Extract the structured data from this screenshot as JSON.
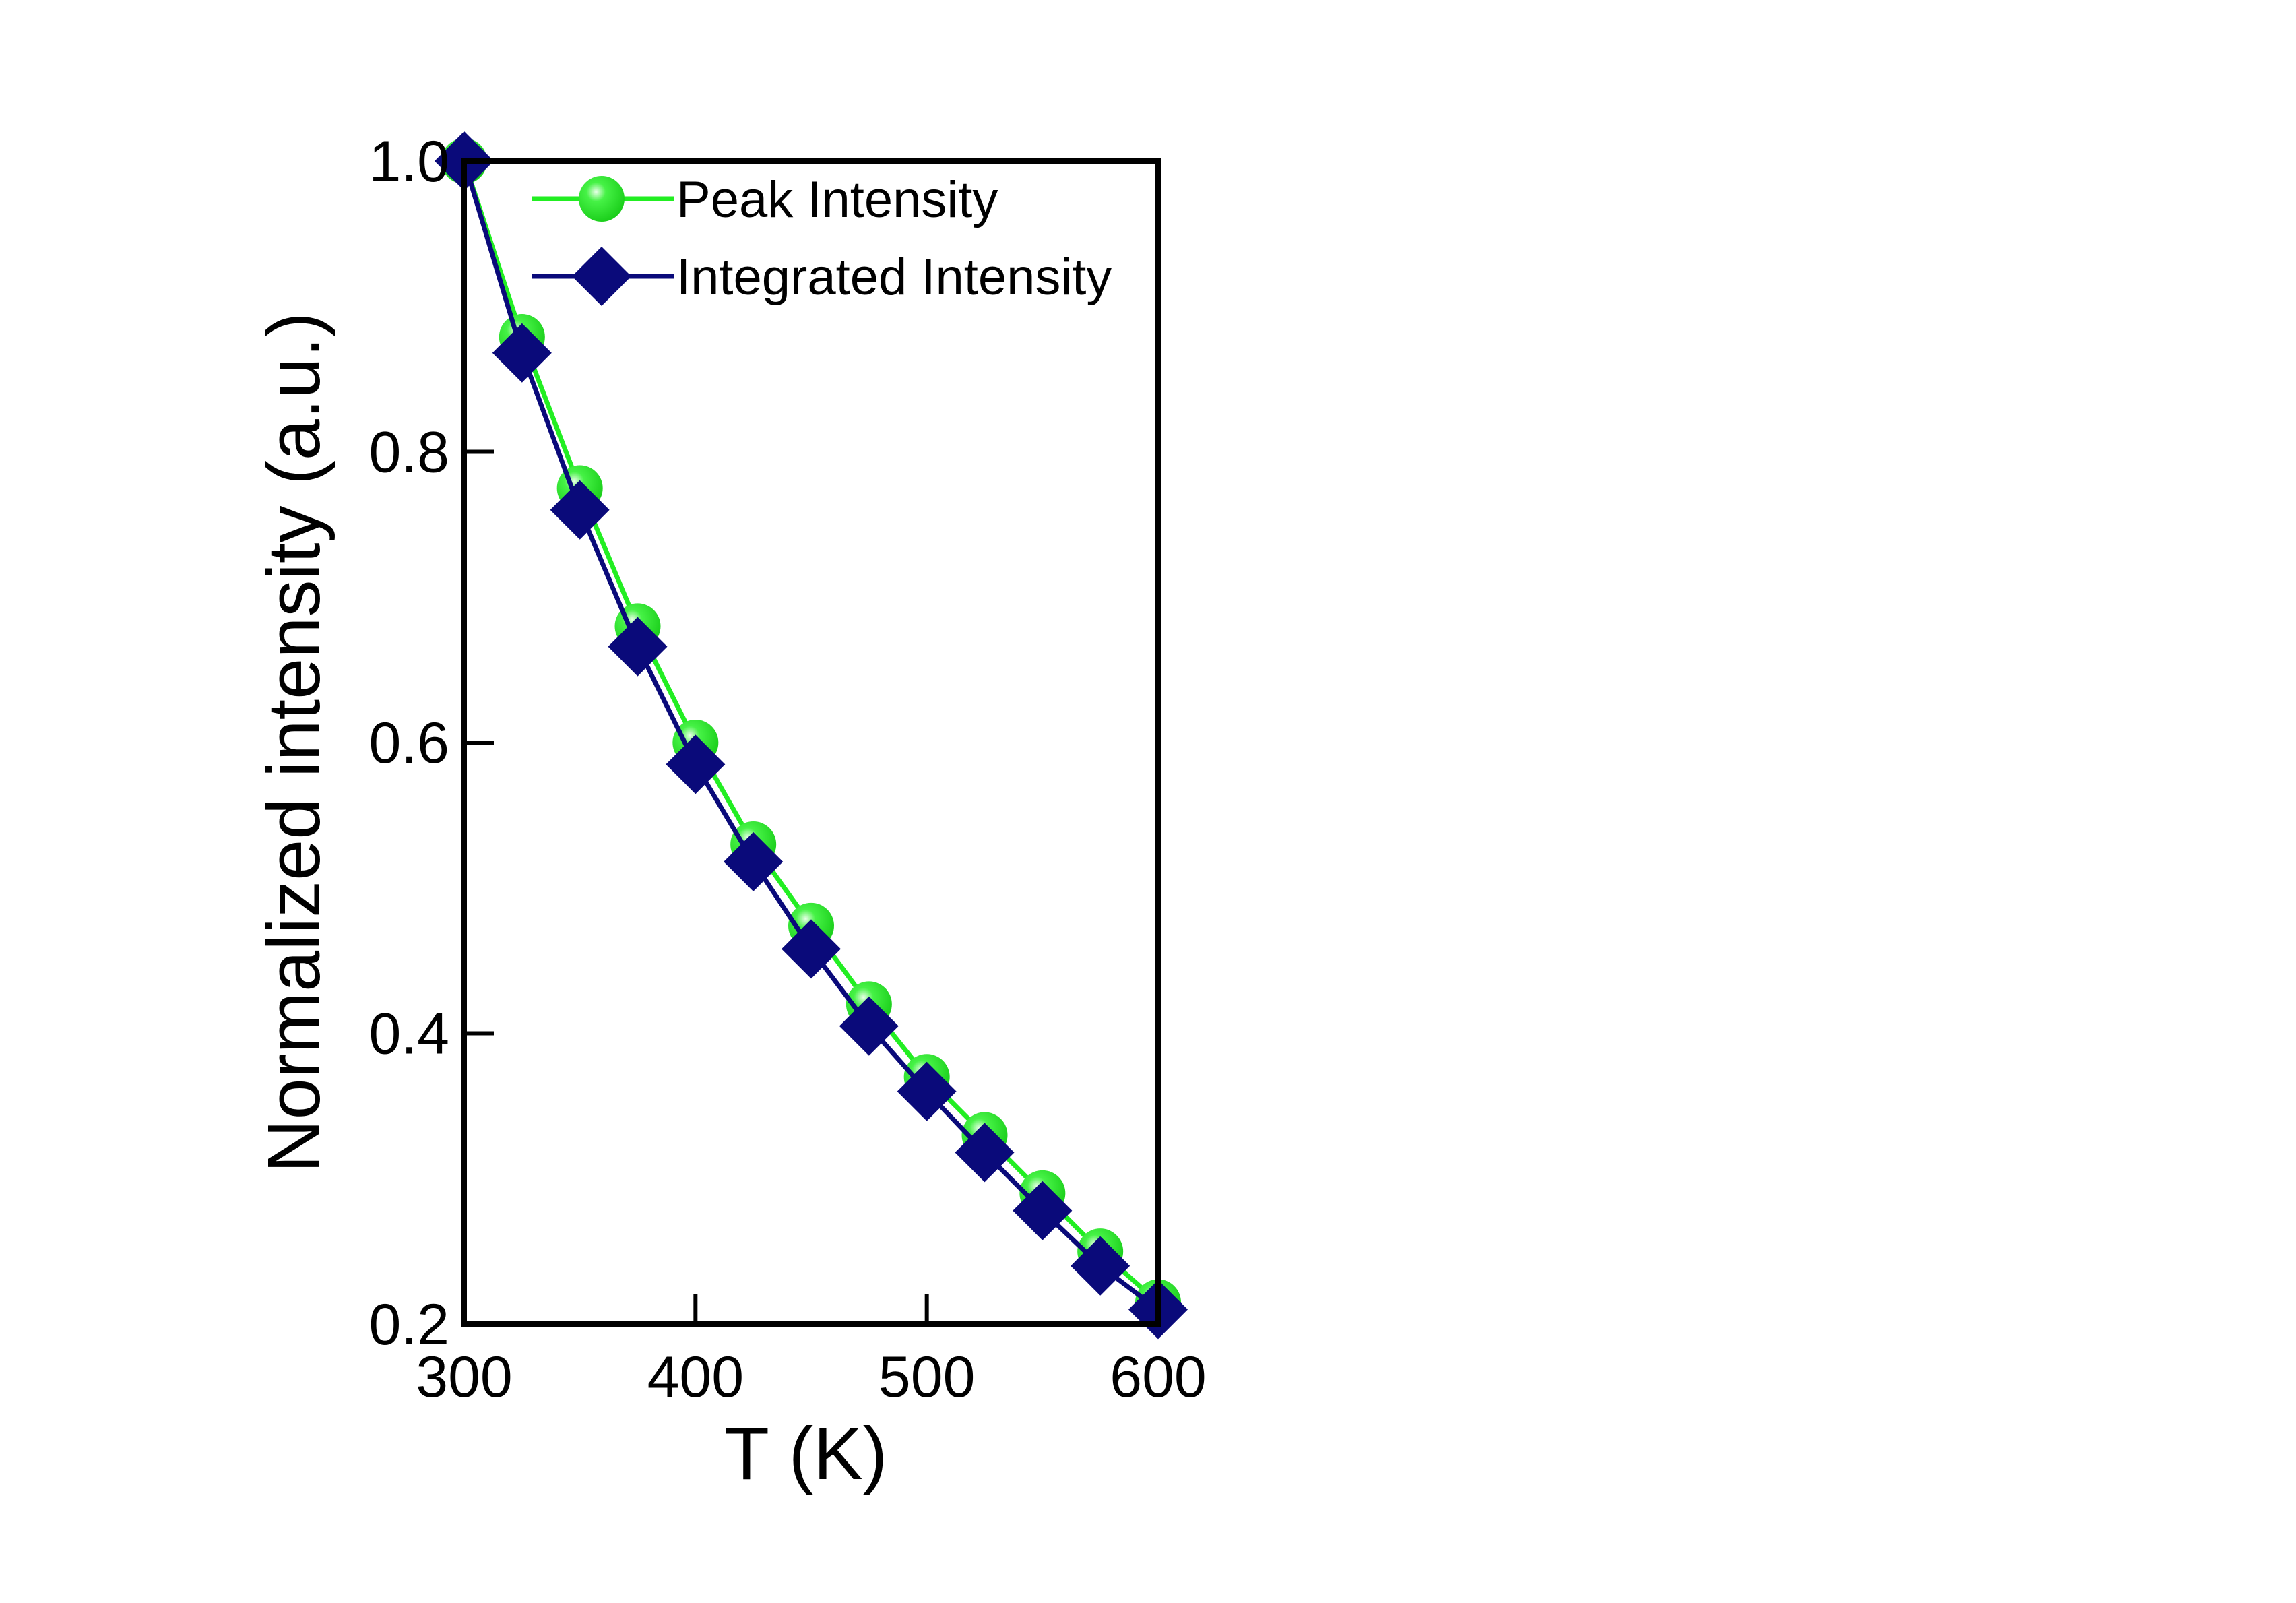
{
  "chart_data": {
    "type": "line",
    "title": "",
    "xlabel": "T (K)",
    "ylabel": "Normalized intensity (a.u.)",
    "xlim": [
      300,
      600
    ],
    "ylim": [
      0.2,
      1.0
    ],
    "xticks": [
      "300",
      "400",
      "500",
      "600"
    ],
    "yticks": [
      "0.2",
      "0.4",
      "0.6",
      "0.8",
      "1.0"
    ],
    "x": [
      300,
      325,
      350,
      375,
      400,
      425,
      450,
      475,
      500,
      525,
      550,
      575,
      600
    ],
    "series": [
      {
        "name": "Peak Intensity",
        "marker": "circle",
        "color": "#22ee22",
        "values": [
          1.0,
          0.879,
          0.775,
          0.68,
          0.6,
          0.53,
          0.474,
          0.42,
          0.37,
          0.33,
          0.29,
          0.25,
          0.215
        ]
      },
      {
        "name": "Integrated Intensity",
        "marker": "diamond",
        "color": "#0a0a7a",
        "values": [
          1.0,
          0.868,
          0.76,
          0.666,
          0.585,
          0.518,
          0.458,
          0.405,
          0.36,
          0.318,
          0.278,
          0.24,
          0.21
        ]
      }
    ],
    "legend": "top-right",
    "grid": false
  }
}
